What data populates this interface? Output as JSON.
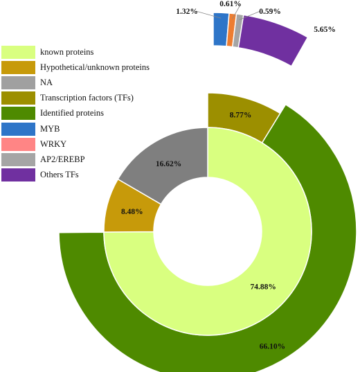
{
  "chart_data": {
    "type": "pie",
    "legend_position": "top-left",
    "series": [
      {
        "ring": "inner",
        "labels": [
          "known proteins",
          "Hypothetical/unknown proteins",
          "NA"
        ],
        "values": [
          74.88,
          8.48,
          16.62
        ],
        "colors": [
          "#d9ff80",
          "#c79a0a",
          "#7f7f7f"
        ],
        "data_labels": [
          "74.88%",
          "8.48%",
          "16.62%"
        ]
      },
      {
        "ring": "outer",
        "labels": [
          "Identified proteins",
          "Transcription factors (TFs)"
        ],
        "values": [
          66.1,
          8.77
        ],
        "colors": [
          "#4e8a00",
          "#9c8f00"
        ],
        "data_labels": [
          "66.10%",
          "8.77%"
        ]
      },
      {
        "ring": "exploded",
        "labels": [
          "MYB",
          "WRKY",
          "AP2/EREBP",
          "Others TFs"
        ],
        "values": [
          1.32,
          0.61,
          0.59,
          5.65
        ],
        "colors": [
          "#2e75c8",
          "#ed7d31",
          "#a5a5a5",
          "#7030a0"
        ],
        "data_labels": [
          "1.32%",
          "0.61%",
          "0.59%",
          "5.65%"
        ]
      }
    ]
  },
  "legend": [
    {
      "label": "known proteins",
      "color": "#d9ff80"
    },
    {
      "label": "Hypothetical/unknown proteins",
      "color": "#c79a0a"
    },
    {
      "label": "NA",
      "color": "#a0a0a0"
    },
    {
      "label": "Transcription factors (TFs)",
      "color": "#9c8f00"
    },
    {
      "label": "Identified proteins",
      "color": "#4e8a00"
    },
    {
      "label": "MYB",
      "color": "#2e75c8"
    },
    {
      "label": "WRKY",
      "color": "#ff8585"
    },
    {
      "label": "AP2/EREBP",
      "color": "#a5a5a5"
    },
    {
      "label": "Others TFs",
      "color": "#7030a0"
    }
  ]
}
